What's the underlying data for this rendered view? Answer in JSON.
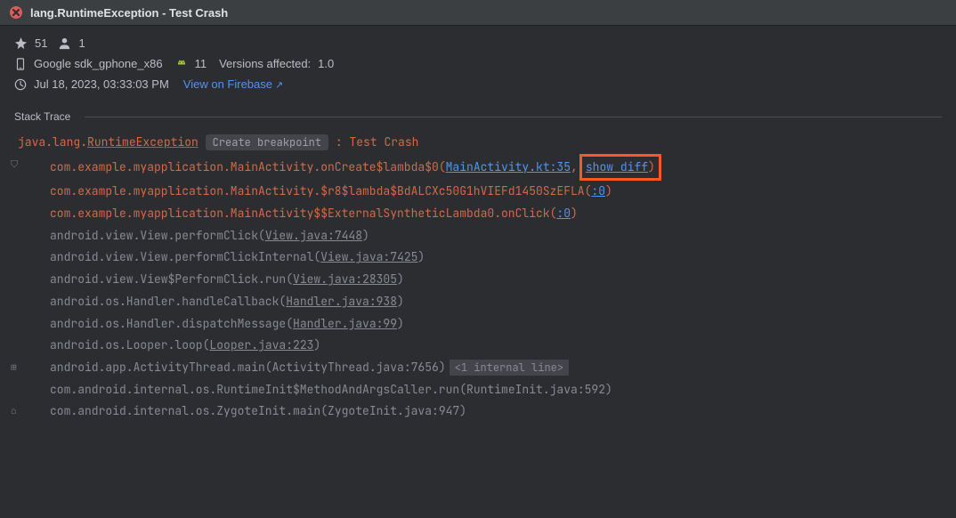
{
  "colors": {
    "bg": "#2b2d30",
    "titlebar_bg": "#3c3f41",
    "text_primary": "#dfe1e5",
    "text_secondary": "#bcbec4",
    "text_muted": "#878a91",
    "link": "#5394ec",
    "exception": "#cf6a4c",
    "highlight_border": "#ff5722",
    "android_green": "#a4c639",
    "error_red": "#db5c5c",
    "chip_bg": "#43454a"
  },
  "title": "lang.RuntimeException - Test Crash",
  "stats": {
    "crash_count": "51",
    "user_count": "1"
  },
  "device": {
    "name": "Google sdk_gphone_x86",
    "api": "11",
    "versions_label": "Versions affected:",
    "versions_value": "1.0"
  },
  "timestamp": "Jul 18, 2023, 03:33:03 PM",
  "firebase_link": "View on Firebase",
  "section_label": "Stack Trace",
  "exception": {
    "pkg": "java.lang.",
    "cls": "RuntimeException",
    "breakpoint_label": "Create breakpoint",
    "colon": " : ",
    "message": "Test Crash"
  },
  "frames": [
    {
      "type": "app",
      "method": "com.example.myapplication.MainActivity.onCreate$lambda$0",
      "loc": "MainActivity.kt:35",
      "show_diff": "show diff",
      "gutter": "shield"
    },
    {
      "type": "app",
      "method": "com.example.myapplication.MainActivity.$r8$lambda$BdALCXc50G1hVIEFd1450SzEFLA",
      "loc": ":0"
    },
    {
      "type": "app",
      "method": "com.example.myapplication.MainActivity$$ExternalSyntheticLambda0.onClick",
      "loc": ":0"
    },
    {
      "type": "sys",
      "method": "android.view.View.performClick",
      "loc": "View.java:7448",
      "loc_style": "muted"
    },
    {
      "type": "sys",
      "method": "android.view.View.performClickInternal",
      "loc": "View.java:7425",
      "loc_style": "muted"
    },
    {
      "type": "sys",
      "method": "android.view.View$PerformClick.run",
      "loc": "View.java:28305",
      "loc_style": "muted"
    },
    {
      "type": "sys",
      "method": "android.os.Handler.handleCallback",
      "loc": "Handler.java:938",
      "loc_style": "muted"
    },
    {
      "type": "sys",
      "method": "android.os.Handler.dispatchMessage",
      "loc": "Handler.java:99",
      "loc_style": "muted"
    },
    {
      "type": "sys",
      "method": "android.os.Looper.loop",
      "loc": "Looper.java:223",
      "loc_style": "muted"
    },
    {
      "type": "sys",
      "method": "android.app.ActivityThread.main",
      "loc": "ActivityThread.java:7656",
      "loc_style": "plain",
      "internal": "<1 internal line>",
      "gutter": "expand"
    },
    {
      "type": "sys",
      "method": "com.android.internal.os.RuntimeInit$MethodAndArgsCaller.run",
      "loc": "RuntimeInit.java:592",
      "loc_style": "plain"
    },
    {
      "type": "sys",
      "method": "com.android.internal.os.ZygoteInit.main",
      "loc": "ZygoteInit.java:947",
      "loc_style": "plain",
      "gutter": "home"
    }
  ]
}
